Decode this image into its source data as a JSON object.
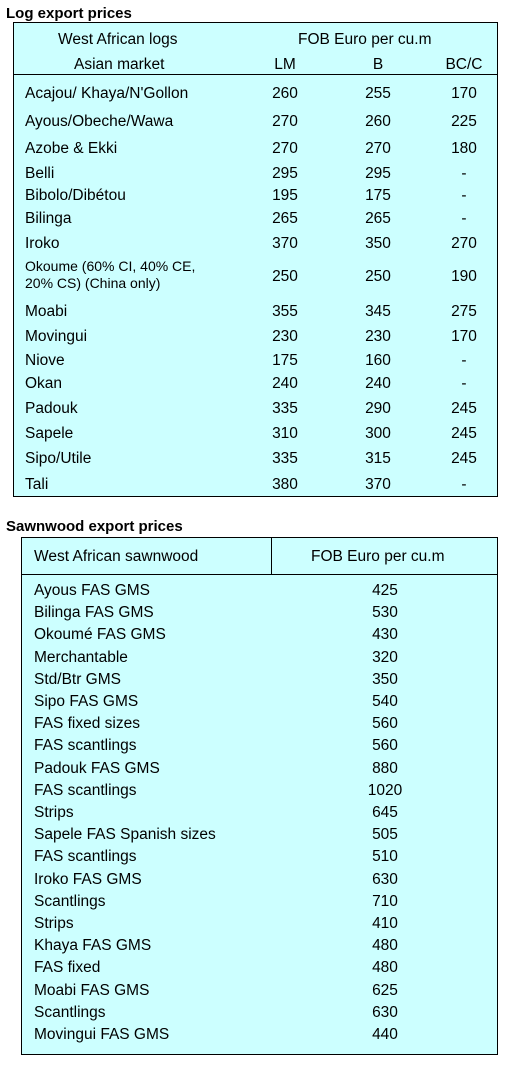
{
  "log_section": {
    "title": "Log export prices",
    "header": {
      "col1_line1": "West African logs",
      "col1_line2": "Asian market",
      "price_header": "FOB Euro per cu.m",
      "lm": "LM",
      "b": "B",
      "bc": "BC/C"
    },
    "rows": [
      {
        "name": "Acajou/ Khaya/N'Gollon",
        "lm": "260",
        "b": "255",
        "bc": "170"
      },
      {
        "name": "Ayous/Obeche/Wawa",
        "lm": "270",
        "b": "260",
        "bc": "225"
      },
      {
        "name": "Azobe & Ekki",
        "lm": "270",
        "b": "270",
        "bc": "180"
      },
      {
        "name": "Belli",
        "lm": "295",
        "b": "295",
        "bc": "-"
      },
      {
        "name": "Bibolo/Dibétou",
        "lm": "195",
        "b": "175",
        "bc": "-"
      },
      {
        "name": "Bilinga",
        "lm": "265",
        "b": "265",
        "bc": "-"
      },
      {
        "name": "Iroko",
        "lm": "370",
        "b": "350",
        "bc": "270"
      },
      {
        "name": "Okoume (60% CI, 40% CE,\n20% CS) (China only)",
        "lm": "250",
        "b": "250",
        "bc": "190"
      },
      {
        "name": "Moabi",
        "lm": "355",
        "b": "345",
        "bc": "275"
      },
      {
        "name": "Movingui",
        "lm": "230",
        "b": "230",
        "bc": "170"
      },
      {
        "name": "Niove",
        "lm": "175",
        "b": "160",
        "bc": "-"
      },
      {
        "name": "Okan",
        "lm": "240",
        "b": "240",
        "bc": "-"
      },
      {
        "name": "Padouk",
        "lm": "335",
        "b": "290",
        "bc": "245"
      },
      {
        "name": "Sapele",
        "lm": "310",
        "b": "300",
        "bc": "245"
      },
      {
        "name": "Sipo/Utile",
        "lm": "335",
        "b": "315",
        "bc": "245"
      },
      {
        "name": "Tali",
        "lm": "380",
        "b": "370",
        "bc": "-"
      }
    ]
  },
  "sawn_section": {
    "title": "Sawnwood export prices",
    "header": {
      "col1": "West African sawnwood",
      "col2": "FOB Euro per cu.m"
    },
    "rows": [
      {
        "name": "Ayous FAS GMS",
        "price": "425"
      },
      {
        "name": "Bilinga FAS GMS",
        "price": "530"
      },
      {
        "name": "Okoumé FAS GMS",
        "price": "430"
      },
      {
        "name": "Merchantable",
        "price": "320"
      },
      {
        "name": "Std/Btr GMS",
        "price": "350"
      },
      {
        "name": "Sipo FAS GMS",
        "price": "540"
      },
      {
        "name": "FAS fixed sizes",
        "price": "560"
      },
      {
        "name": "FAS scantlings",
        "price": "560"
      },
      {
        "name": "Padouk FAS GMS",
        "price": "880"
      },
      {
        "name": "FAS scantlings",
        "price": "1020"
      },
      {
        "name": "Strips",
        "price": "645"
      },
      {
        "name": "Sapele FAS Spanish sizes",
        "price": "505"
      },
      {
        "name": "FAS scantlings",
        "price": "510"
      },
      {
        "name": "Iroko FAS GMS",
        "price": "630"
      },
      {
        "name": "Scantlings",
        "price": "710"
      },
      {
        "name": "Strips",
        "price": "410"
      },
      {
        "name": "Khaya FAS GMS",
        "price": "480"
      },
      {
        "name": "FAS fixed",
        "price": "480"
      },
      {
        "name": "Moabi FAS GMS",
        "price": "625"
      },
      {
        "name": "Scantlings",
        "price": "630"
      },
      {
        "name": "Movingui FAS GMS",
        "price": "440"
      }
    ]
  }
}
